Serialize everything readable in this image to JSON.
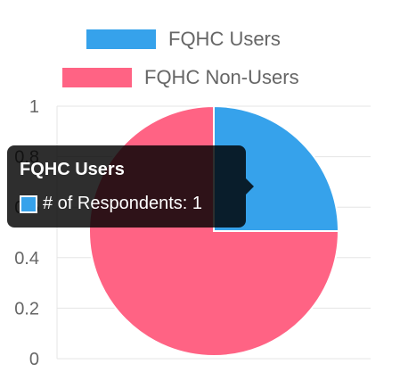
{
  "chart_data": {
    "type": "pie",
    "series_label": "# of Respondents",
    "categories": [
      "FQHC Users",
      "FQHC Non-Users"
    ],
    "values": [
      1,
      3
    ],
    "colors": [
      "#36A2EB",
      "#FF6384"
    ],
    "y_ticks": [
      "1",
      "0.8",
      "0.6",
      "0.4",
      "0.2",
      "0"
    ],
    "grid": true,
    "legend_position": "top"
  },
  "tooltip": {
    "title": "FQHC Users",
    "line": "# of Respondents: 1",
    "swatch_color": "#36A2EB"
  }
}
